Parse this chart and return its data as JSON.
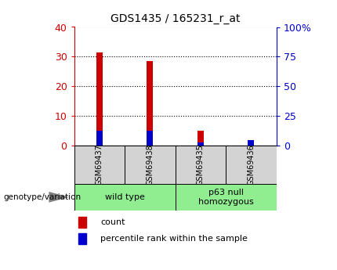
{
  "title": "GDS1435 / 165231_r_at",
  "samples": [
    "GSM69437",
    "GSM69438",
    "GSM69435",
    "GSM69436"
  ],
  "count_values": [
    31.5,
    28.5,
    5.0,
    2.0
  ],
  "percentile_values": [
    13.0,
    13.0,
    3.0,
    5.0
  ],
  "left_ylim": [
    0,
    40
  ],
  "right_ylim": [
    0,
    100
  ],
  "left_yticks": [
    0,
    10,
    20,
    30,
    40
  ],
  "right_yticks": [
    0,
    25,
    50,
    75,
    100
  ],
  "right_yticklabels": [
    "0",
    "25",
    "50",
    "75",
    "100%"
  ],
  "bar_width": 0.12,
  "red_color": "#cc0000",
  "blue_color": "#0000cc",
  "groups": [
    {
      "label": "wild type",
      "indices": [
        0,
        1
      ]
    },
    {
      "label": "p63 null\nhomozygous",
      "indices": [
        2,
        3
      ]
    }
  ],
  "group_colors": [
    "#90ee90",
    "#90ee90"
  ],
  "sample_box_color": "#d3d3d3",
  "genotype_label": "genotype/variation",
  "legend_items": [
    "count",
    "percentile rank within the sample"
  ]
}
